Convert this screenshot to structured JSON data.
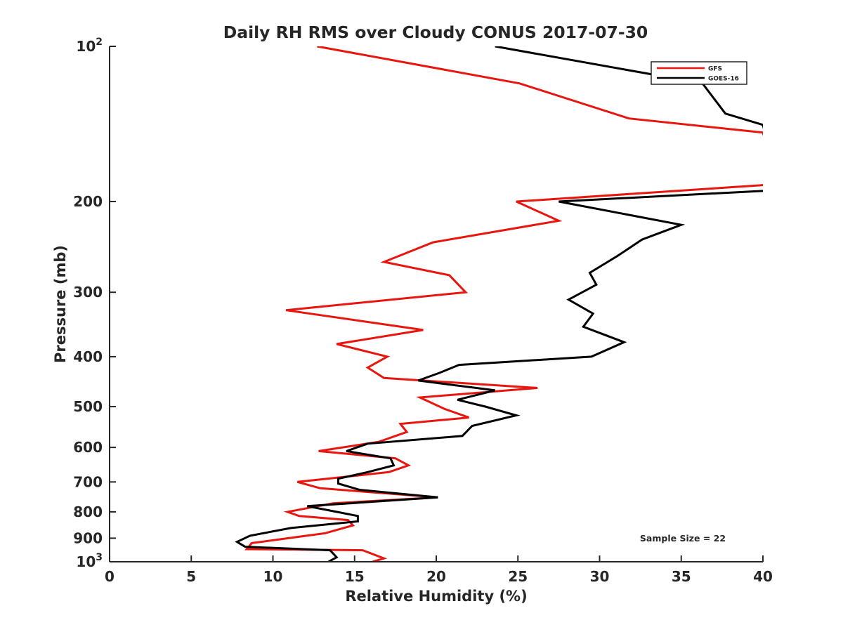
{
  "chart_data": {
    "type": "line",
    "title": "Daily RH RMS over Cloudy CONUS 2017-07-30",
    "xlabel": "Relative Humidity (%)",
    "ylabel": "Pressure (mb)",
    "xlim": [
      0,
      40
    ],
    "ylim": [
      100,
      1000
    ],
    "y_scale": "log",
    "y_reversed": true,
    "grid": false,
    "legend_position": "top-right",
    "x_ticks": [
      {
        "value": 0,
        "label": "0"
      },
      {
        "value": 5,
        "label": "5"
      },
      {
        "value": 10,
        "label": "10"
      },
      {
        "value": 15,
        "label": "15"
      },
      {
        "value": 20,
        "label": "20"
      },
      {
        "value": 25,
        "label": "25"
      },
      {
        "value": 30,
        "label": "30"
      },
      {
        "value": 35,
        "label": "35"
      },
      {
        "value": 40,
        "label": "40"
      }
    ],
    "y_ticks": [
      {
        "value": 100,
        "base": "10",
        "exp": "2"
      },
      {
        "value": 200,
        "label": "200"
      },
      {
        "value": 300,
        "label": "300"
      },
      {
        "value": 400,
        "label": "400"
      },
      {
        "value": 500,
        "label": "500"
      },
      {
        "value": 600,
        "label": "600"
      },
      {
        "value": 700,
        "label": "700"
      },
      {
        "value": 800,
        "label": "800"
      },
      {
        "value": 900,
        "label": "900"
      },
      {
        "value": 1000,
        "base": "10",
        "exp": "3"
      }
    ],
    "annotation": "Sample Size = 22",
    "series": [
      {
        "name": "GFS",
        "color": "#e8160f",
        "x": [
          12.7,
          25.1,
          31.8,
          40.0,
          41.0,
          24.9,
          27.5,
          19.8,
          16.8,
          20.8,
          21.8,
          10.8,
          19.2,
          13.9,
          17.0,
          15.8,
          16.8,
          26.2,
          19.0,
          20.5,
          22.0,
          17.8,
          18.2,
          16.5,
          12.8,
          17.5,
          18.3,
          17.1,
          11.5,
          12.9,
          20.1,
          13.7,
          10.9,
          11.6,
          14.6,
          14.9,
          13.2,
          8.7,
          8.4,
          15.5,
          16.8,
          16.1
        ],
        "y": [
          100,
          118,
          138,
          147,
          185,
          200,
          218,
          240,
          262,
          278,
          300,
          325,
          355,
          378,
          400,
          420,
          440,
          460,
          480,
          505,
          525,
          540,
          560,
          585,
          610,
          630,
          650,
          670,
          700,
          720,
          750,
          770,
          800,
          815,
          830,
          850,
          880,
          920,
          945,
          950,
          985,
          1000
        ]
      },
      {
        "name": "GOES-16",
        "color": "#000000",
        "x": [
          23.6,
          36.3,
          37.7,
          40.0,
          41.0,
          27.5,
          35.0,
          32.6,
          31.1,
          29.4,
          29.8,
          28.1,
          29.6,
          29.0,
          31.5,
          29.5,
          21.4,
          20.2,
          18.9,
          23.6,
          21.3,
          23.0,
          24.9,
          22.2,
          21.6,
          15.8,
          14.5,
          17.2,
          17.4,
          15.8,
          14.0,
          14.0,
          15.3,
          20.1,
          12.1,
          13.9,
          15.2,
          15.2,
          11.1,
          8.6,
          7.8,
          8.3,
          13.5,
          13.9,
          13.4
        ],
        "y": [
          100,
          118,
          135,
          142,
          190,
          200,
          222,
          237,
          255,
          275,
          290,
          310,
          330,
          350,
          375,
          400,
          415,
          430,
          445,
          465,
          485,
          500,
          520,
          545,
          570,
          590,
          610,
          630,
          650,
          670,
          690,
          705,
          725,
          750,
          780,
          800,
          815,
          835,
          860,
          890,
          915,
          935,
          950,
          980,
          1000
        ]
      }
    ]
  }
}
